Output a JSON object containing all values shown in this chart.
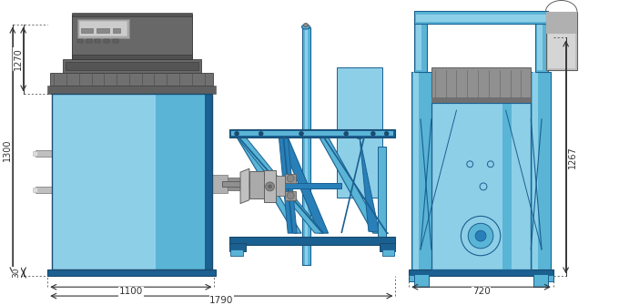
{
  "bg_color": "#ffffff",
  "line_color": "#1a1a1a",
  "dim_color": "#333333",
  "blue_light": "#8ecfe8",
  "blue_mid": "#5ab4d6",
  "blue_dark": "#2980b9",
  "blue_darker": "#1a6090",
  "blue_deepest": "#1a4a6e",
  "gray_dark": "#606060",
  "gray_mid": "#909090",
  "gray_light": "#c0c0c0",
  "gray_body": "#787878",
  "dim_1300": "1300",
  "dim_1270": "1270",
  "dim_30": "30",
  "dim_1100": "1100",
  "dim_1790": "1790",
  "dim_720": "720",
  "dim_1267": "1267"
}
